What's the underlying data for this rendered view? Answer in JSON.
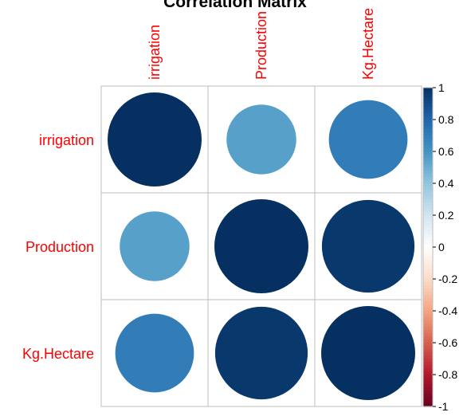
{
  "chart_data": {
    "type": "heatmap",
    "style": "corrplot-circle",
    "title": "Correlation Matrix",
    "variables": [
      "irrigation",
      "Production",
      "Kg.Hectare"
    ],
    "matrix": [
      [
        1.0,
        0.55,
        0.7
      ],
      [
        0.55,
        1.0,
        0.97
      ],
      [
        0.7,
        0.97,
        1.0
      ]
    ],
    "colorbar": {
      "range": [
        -1,
        1
      ],
      "ticks": [
        "1",
        "0.8",
        "0.6",
        "0.4",
        "0.2",
        "0",
        "-0.2",
        "-0.4",
        "-0.6",
        "-0.8",
        "-1"
      ],
      "colors": [
        "#67001F",
        "#B2182B",
        "#D6604D",
        "#F4A582",
        "#FDDBC7",
        "#FFFFFF",
        "#D1E5F0",
        "#92C5DE",
        "#4393C3",
        "#2166AC",
        "#053061"
      ]
    },
    "label_color": "#FF0000",
    "grid": true
  }
}
